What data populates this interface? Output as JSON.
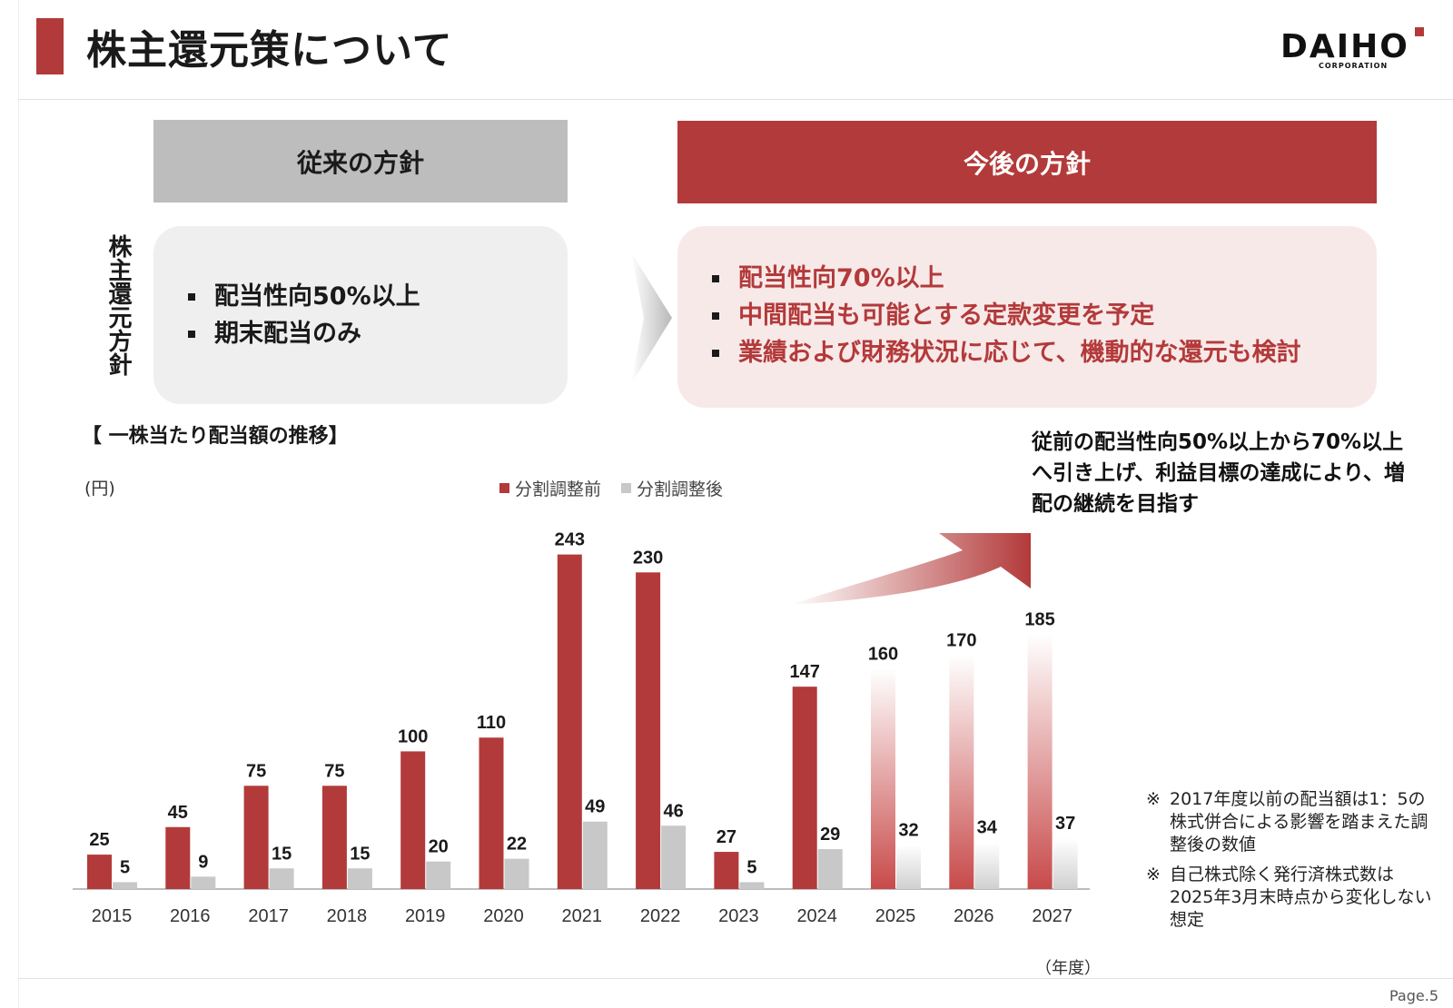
{
  "header": {
    "title": "株主還元策について",
    "logo": "DAIHO",
    "logo_sub": "CORPORATION",
    "accent_color": "#b33a3a"
  },
  "policy": {
    "side_label": "株主還元方針",
    "old": {
      "header": "従来の方針",
      "items": [
        "配当性向50%以上",
        "期末配当のみ"
      ]
    },
    "new": {
      "header": "今後の方針",
      "items": [
        "配当性向70%以上",
        "中間配当も可能とする定款変更を予定",
        "業績および財務状況に応じて、機動的な還元も検討"
      ]
    }
  },
  "chart_title": "【 一株当たり配当額の推移】",
  "callout": "従前の配当性向50%以上から70%以上へ引き上げ、利益目標の達成により、増配の継続を目指す",
  "notes": [
    {
      "mark": "※",
      "text": "2017年度以前の配当額は1：5の株式併合による影響を踏まえた調整後の数値"
    },
    {
      "mark": "※",
      "text": "自己株式除く発行済株式数は2025年3月末時点から変化しない想定"
    }
  ],
  "page_number": "Page.5",
  "chart_data": {
    "type": "bar",
    "title": "一株当たり配当額の推移",
    "ylabel": "(円)",
    "xlabel": "（年度）",
    "ylim": [
      0,
      250
    ],
    "categories": [
      "2015",
      "2016",
      "2017",
      "2018",
      "2019",
      "2020",
      "2021",
      "2022",
      "2023",
      "2024",
      "2025",
      "2026",
      "2027"
    ],
    "series": [
      {
        "name": "分割調整前",
        "color": "#b33a3a",
        "values": [
          25,
          45,
          75,
          75,
          100,
          110,
          243,
          230,
          27,
          147,
          160,
          170,
          185
        ]
      },
      {
        "name": "分割調整後",
        "color": "#c8c8c8",
        "values": [
          5,
          9,
          15,
          15,
          20,
          22,
          49,
          46,
          5,
          29,
          32,
          34,
          37
        ]
      }
    ],
    "forecast_categories": [
      "2025",
      "2026",
      "2027"
    ],
    "grid": false,
    "legend": "top-center"
  }
}
